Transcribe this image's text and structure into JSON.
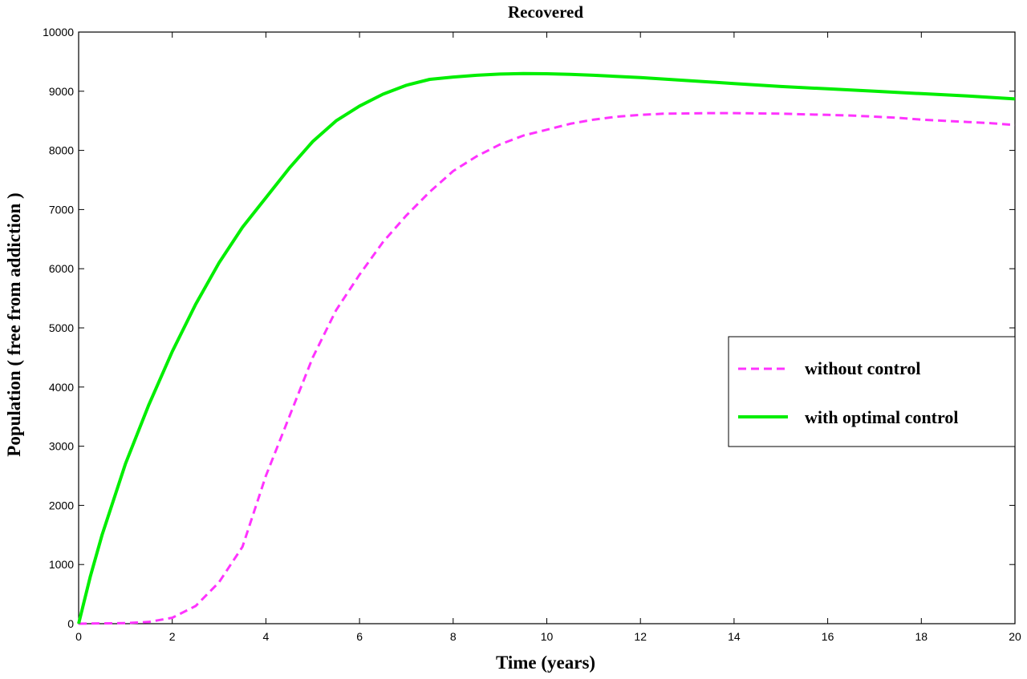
{
  "chart_data": {
    "type": "line",
    "title": "Recovered",
    "xlabel": "Time (years)",
    "ylabel": "Population ( free from addiction )",
    "xlim": [
      0,
      20
    ],
    "ylim": [
      0,
      10000
    ],
    "x_ticks": [
      0,
      2,
      4,
      6,
      8,
      10,
      12,
      14,
      16,
      18,
      20
    ],
    "y_ticks": [
      0,
      1000,
      2000,
      3000,
      4000,
      5000,
      6000,
      7000,
      8000,
      9000,
      10000
    ],
    "grid": false,
    "legend_position": "right",
    "series": [
      {
        "name": "without control",
        "color": "#ff33ff",
        "dash": "dashed",
        "x": [
          0,
          0.5,
          1,
          1.5,
          2,
          2.5,
          3,
          3.5,
          4,
          4.5,
          5,
          5.5,
          6,
          6.5,
          7,
          7.5,
          8,
          8.5,
          9,
          9.5,
          10,
          10.5,
          11,
          11.5,
          12,
          12.5,
          13,
          13.5,
          14,
          14.5,
          15,
          15.5,
          16,
          16.5,
          17,
          17.5,
          18,
          18.5,
          19,
          19.5,
          20
        ],
        "y": [
          0,
          5,
          10,
          30,
          100,
          300,
          700,
          1300,
          2500,
          3500,
          4500,
          5300,
          5900,
          6450,
          6900,
          7300,
          7650,
          7900,
          8100,
          8250,
          8350,
          8450,
          8520,
          8570,
          8600,
          8620,
          8625,
          8630,
          8630,
          8625,
          8620,
          8610,
          8600,
          8590,
          8570,
          8550,
          8520,
          8500,
          8480,
          8460,
          8430
        ]
      },
      {
        "name": "with optimal control",
        "color": "#00ee00",
        "dash": "solid",
        "x": [
          0,
          0.25,
          0.5,
          1,
          1.5,
          2,
          2.5,
          3,
          3.5,
          4,
          4.5,
          5,
          5.5,
          6,
          6.5,
          7,
          7.5,
          8,
          8.5,
          9,
          9.5,
          10,
          10.5,
          11,
          12,
          13,
          14,
          15,
          16,
          17,
          18,
          19,
          20
        ],
        "y": [
          0,
          800,
          1500,
          2700,
          3700,
          4600,
          5400,
          6100,
          6700,
          7200,
          7700,
          8150,
          8500,
          8750,
          8950,
          9100,
          9200,
          9240,
          9270,
          9290,
          9300,
          9295,
          9285,
          9270,
          9230,
          9180,
          9130,
          9080,
          9040,
          9000,
          8960,
          8920,
          8870
        ]
      }
    ]
  }
}
